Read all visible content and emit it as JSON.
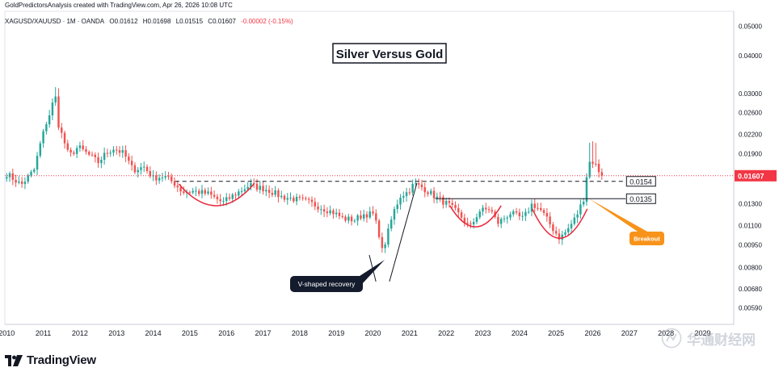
{
  "header": {
    "credit": "GoldPredictorsAnalysis created with TradingView.com, Apr 26, 2026 10:08 UTC"
  },
  "symbol": {
    "name": "XAGUSD/XAUUSD · 1M · OANDA",
    "open": "O0.01612",
    "high": "H0.01698",
    "low": "L0.01515",
    "close": "C0.01607",
    "change": "-0.00002 (-0.15%)"
  },
  "footer": {
    "logo_text": "TradingView"
  },
  "watermark": {
    "text": "华通财经网"
  },
  "colors": {
    "up": "#26a69a",
    "down": "#ef5350",
    "arc": "#e8293b",
    "last_price": "#f23645",
    "callout_dark": "#131b2c",
    "callout_orange": "#f7931a"
  },
  "chart_data": {
    "type": "candlestick",
    "title": "Silver Versus Gold",
    "y_scale": "log",
    "ylim": [
      0.0052,
      0.056
    ],
    "x_range": [
      2009.95,
      2029.85
    ],
    "x_ticks": [
      "2010",
      "2011",
      "2012",
      "2013",
      "2014",
      "2015",
      "2016",
      "2017",
      "2018",
      "2019",
      "2020",
      "2021",
      "2022",
      "2023",
      "2024",
      "2025",
      "2026",
      "2027",
      "2028",
      "2029"
    ],
    "y_ticks": [
      "0.05000",
      "0.04000",
      "0.03000",
      "0.02600",
      "0.02200",
      "0.01900",
      "0.01300",
      "0.01100",
      "0.00950",
      "0.00800",
      "0.00680",
      "0.00590"
    ],
    "last_price": "0.01607",
    "levels": [
      {
        "label": "0.0154",
        "value": 0.0154,
        "style": "dashed",
        "from": 2014.6
      },
      {
        "label": "0.0135",
        "value": 0.0135,
        "style": "solid",
        "from": 2021.7
      }
    ],
    "annotations": [
      {
        "text": "V-shaped recovery",
        "style": "dark-callout"
      },
      {
        "text": "Breakout",
        "style": "orange-callout"
      }
    ],
    "path": [
      [
        2010.0,
        0.0163
      ],
      [
        2010.4,
        0.015
      ],
      [
        2010.75,
        0.0168
      ],
      [
        2010.92,
        0.0205
      ],
      [
        2011.08,
        0.024
      ],
      [
        2011.2,
        0.0262
      ],
      [
        2011.32,
        0.03
      ],
      [
        2011.42,
        0.0235
      ],
      [
        2011.55,
        0.0212
      ],
      [
        2011.7,
        0.0186
      ],
      [
        2011.95,
        0.02
      ],
      [
        2012.2,
        0.019
      ],
      [
        2012.5,
        0.0178
      ],
      [
        2012.7,
        0.019
      ],
      [
        2012.92,
        0.0198
      ],
      [
        2013.2,
        0.019
      ],
      [
        2013.45,
        0.0168
      ],
      [
        2013.75,
        0.0172
      ],
      [
        2014.0,
        0.0158
      ],
      [
        2014.3,
        0.016
      ],
      [
        2014.6,
        0.0151
      ],
      [
        2014.8,
        0.0142
      ],
      [
        2015.1,
        0.0143
      ],
      [
        2015.5,
        0.014
      ],
      [
        2015.9,
        0.0131
      ],
      [
        2016.25,
        0.014
      ],
      [
        2016.65,
        0.015
      ],
      [
        2016.85,
        0.0147
      ],
      [
        2017.1,
        0.0145
      ],
      [
        2017.5,
        0.0137
      ],
      [
        2017.8,
        0.0135
      ],
      [
        2018.2,
        0.0132
      ],
      [
        2018.6,
        0.0126
      ],
      [
        2018.9,
        0.0122
      ],
      [
        2019.2,
        0.0116
      ],
      [
        2019.5,
        0.0115
      ],
      [
        2019.75,
        0.012
      ],
      [
        2020.0,
        0.012
      ],
      [
        2020.15,
        0.0106
      ],
      [
        2020.25,
        0.0091
      ],
      [
        2020.35,
        0.0098
      ],
      [
        2020.55,
        0.0121
      ],
      [
        2020.75,
        0.0138
      ],
      [
        2020.95,
        0.0142
      ],
      [
        2021.12,
        0.0151
      ],
      [
        2021.35,
        0.0147
      ],
      [
        2021.7,
        0.0137
      ],
      [
        2022.1,
        0.0128
      ],
      [
        2022.4,
        0.0118
      ],
      [
        2022.65,
        0.0108
      ],
      [
        2022.9,
        0.0123
      ],
      [
        2023.2,
        0.0125
      ],
      [
        2023.4,
        0.0112
      ],
      [
        2023.75,
        0.0121
      ],
      [
        2024.1,
        0.0116
      ],
      [
        2024.35,
        0.013
      ],
      [
        2024.6,
        0.0123
      ],
      [
        2024.9,
        0.0108
      ],
      [
        2025.1,
        0.01
      ],
      [
        2025.3,
        0.0106
      ],
      [
        2025.55,
        0.0118
      ],
      [
        2025.75,
        0.0135
      ],
      [
        2025.88,
        0.0177
      ],
      [
        2025.96,
        0.018
      ],
      [
        2026.05,
        0.0177
      ],
      [
        2026.25,
        0.016
      ]
    ]
  }
}
